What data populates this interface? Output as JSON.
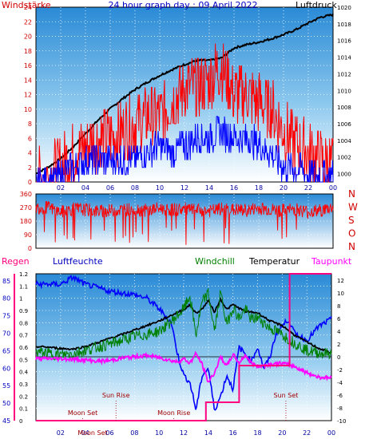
{
  "chart_data": [
    {
      "type": "line",
      "title": "24 hour graph day : 09 April 2022",
      "left_axis_label": "Windstärke",
      "right_axis_label": "Luftdruck",
      "x_ticks": [
        "02",
        "04",
        "06",
        "08",
        "10",
        "12",
        "14",
        "16",
        "18",
        "20",
        "22",
        "00"
      ],
      "left_ticks": [
        "0",
        "2",
        "4",
        "6",
        "8",
        "10",
        "12",
        "14",
        "16",
        "18",
        "20",
        "22",
        "24"
      ],
      "right_ticks": [
        "1000",
        "1002",
        "1004",
        "1006",
        "1008",
        "1010",
        "1012",
        "1014",
        "1016",
        "1018",
        "1020"
      ],
      "ylim_left": [
        0,
        24
      ],
      "ylim_right": [
        999,
        1020
      ],
      "series": [
        {
          "key": "pressure",
          "color": "#000000",
          "x": [
            0,
            1,
            2,
            3,
            4,
            5,
            6,
            7,
            8,
            9,
            10,
            11,
            12,
            13,
            14,
            15,
            16,
            17,
            18,
            19,
            20,
            21,
            22,
            23,
            24
          ],
          "values": [
            1000.0,
            1000.8,
            1001.8,
            1003.2,
            1004.8,
            1006.4,
            1007.8,
            1009.0,
            1010.1,
            1011.0,
            1011.8,
            1012.5,
            1013.1,
            1013.6,
            1013.6,
            1013.9,
            1015.1,
            1015.5,
            1015.8,
            1016.2,
            1016.7,
            1017.3,
            1018.1,
            1018.8,
            1019.1
          ]
        },
        {
          "key": "wind_gust",
          "color": "#ff0000",
          "x": [
            0,
            1,
            2,
            3,
            4,
            5,
            6,
            7,
            8,
            9,
            10,
            11,
            12,
            13,
            14,
            15,
            16,
            17,
            18,
            19,
            20,
            21,
            22,
            23,
            24
          ],
          "values": [
            0,
            1,
            2,
            4,
            5,
            6,
            6,
            7,
            8,
            9,
            9,
            11,
            13,
            13,
            14,
            16,
            12,
            12,
            11,
            10,
            7,
            5,
            4,
            3,
            2
          ]
        },
        {
          "key": "wind_avg",
          "color": "#0000ff",
          "x": [
            0,
            1,
            2,
            3,
            4,
            5,
            6,
            7,
            8,
            9,
            10,
            11,
            12,
            13,
            14,
            15,
            16,
            17,
            18,
            19,
            20,
            21,
            22,
            23,
            24
          ],
          "values": [
            0,
            0,
            1,
            2,
            3,
            3,
            3,
            3,
            3,
            4,
            5,
            4,
            5,
            6,
            6,
            7,
            6,
            6,
            5,
            4,
            2,
            2,
            1,
            1,
            1
          ]
        }
      ]
    },
    {
      "type": "line",
      "right_labels": [
        "N",
        "W",
        "S",
        "O",
        "N"
      ],
      "left_ticks": [
        "0",
        "90",
        "180",
        "270",
        "360"
      ],
      "ylim": [
        0,
        360
      ],
      "series": [
        {
          "key": "wind_direction",
          "color": "#ff0000",
          "x": [
            0,
            1,
            2,
            3,
            4,
            5,
            6,
            7,
            8,
            9,
            10,
            11,
            12,
            13,
            14,
            15,
            16,
            17,
            18,
            19,
            20,
            21,
            22,
            23,
            24
          ],
          "values": [
            270,
            270,
            240,
            260,
            255,
            245,
            250,
            255,
            260,
            250,
            265,
            255,
            260,
            250,
            245,
            260,
            255,
            250,
            265,
            255,
            250,
            260,
            240,
            250,
            270
          ]
        }
      ]
    },
    {
      "type": "line",
      "legend": [
        "Regen",
        "Luftfeuchte",
        "Windchill",
        "Temperatur",
        "Taupunkt"
      ],
      "x_ticks": [
        "02",
        "04",
        "06",
        "08",
        "10",
        "12",
        "14",
        "16",
        "18",
        "20",
        "22",
        "00"
      ],
      "rain_ticks": [
        "0",
        "0.1",
        "0.2",
        "0.3",
        "0.4",
        "0.5",
        "0.6",
        "0.7",
        "0.8",
        "0.9",
        "1",
        "1.1",
        "1.2"
      ],
      "humidity_ticks": [
        "45",
        "50",
        "55",
        "60",
        "65",
        "70",
        "75",
        "80",
        "85"
      ],
      "temp_ticks": [
        "-10",
        "-8",
        "-6",
        "-4",
        "-2",
        "0",
        "2",
        "4",
        "6",
        "8",
        "10",
        "12"
      ],
      "ylim_temp": [
        -10,
        13
      ],
      "ylim_humidity": [
        45,
        87
      ],
      "annotations": [
        "Moon Set",
        "Sun Rise",
        "Moon Rise",
        "Sun Set",
        "Moon Set"
      ],
      "series": [
        {
          "key": "humidity",
          "color": "#0000ff",
          "x": [
            0,
            2,
            3,
            4,
            5,
            6,
            8,
            9,
            10,
            11,
            11.5,
            12,
            12.5,
            13,
            13.5,
            14,
            14.5,
            15,
            15.5,
            16,
            16.5,
            17,
            17.5,
            18,
            18.5,
            19,
            19.5,
            20,
            20.5,
            21,
            22,
            23,
            24
          ],
          "values": [
            84,
            84,
            86,
            84,
            83,
            82,
            81,
            80,
            77,
            73,
            64,
            58,
            56,
            48,
            58,
            60,
            48,
            52,
            58,
            54,
            66,
            64,
            62,
            66,
            60,
            63,
            70,
            72,
            74,
            70,
            68,
            72,
            74
          ]
        },
        {
          "key": "temperature",
          "color": "#000000",
          "x": [
            0,
            1,
            2,
            3,
            4,
            5,
            6,
            7,
            8,
            9,
            10,
            11,
            12,
            12.5,
            13,
            13.5,
            14,
            14.5,
            15,
            15.5,
            16,
            16.5,
            17,
            18,
            19,
            20,
            21,
            22,
            23,
            24
          ],
          "values": [
            1.6,
            1.5,
            1.3,
            1.2,
            1.6,
            2.2,
            2.9,
            3.5,
            4.2,
            4.9,
            5.6,
            6.5,
            7.4,
            8.1,
            6.8,
            7.5,
            8.8,
            7.0,
            9.0,
            7.4,
            8.2,
            7.6,
            7.1,
            6.9,
            5.6,
            4.9,
            3.4,
            2.3,
            1.3,
            0.6
          ]
        },
        {
          "key": "windchill",
          "color": "#008000",
          "x": [
            0,
            1,
            2,
            3,
            4,
            5,
            6,
            7,
            8,
            9,
            10,
            11,
            12,
            12.5,
            13,
            13.5,
            14,
            14.5,
            15,
            15.5,
            16,
            16.5,
            17,
            17.5,
            18,
            19,
            20,
            21,
            22,
            23,
            24
          ],
          "values": [
            0.8,
            0.5,
            0.3,
            0.5,
            1.0,
            1.5,
            2.0,
            2.6,
            3.2,
            3.5,
            4.0,
            5.5,
            7.5,
            9.5,
            3.5,
            8.5,
            10.0,
            4.0,
            10.0,
            5.0,
            7.8,
            6.0,
            7.5,
            5.8,
            6.2,
            4.5,
            3.5,
            2.2,
            1.0,
            0.6,
            0.5
          ]
        },
        {
          "key": "dewpoint",
          "color": "#ff00ff",
          "x": [
            0,
            2,
            3,
            4,
            5,
            6,
            7,
            8,
            9,
            10,
            11,
            11.5,
            12,
            12.5,
            13,
            13.5,
            14,
            14.5,
            15,
            15.5,
            16,
            16.5,
            17,
            17.5,
            18,
            19,
            20,
            21,
            22,
            23,
            24
          ],
          "values": [
            -0.3,
            -0.3,
            -0.4,
            -0.5,
            -0.7,
            -0.6,
            -0.2,
            0.0,
            0.2,
            -0.1,
            -0.6,
            -0.8,
            -0.3,
            -1.0,
            0.5,
            -1.2,
            -4.0,
            -2.5,
            0.0,
            -1.5,
            0.4,
            -1.0,
            0.3,
            -1.0,
            -1.5,
            -1.2,
            -1.0,
            -1.5,
            -2.5,
            -3.2,
            -3.3
          ]
        },
        {
          "key": "rain",
          "color": "#ff0080",
          "x": [
            0,
            13.8,
            13.8,
            16.5,
            16.5,
            17.6,
            17.6,
            20.6,
            20.6,
            24
          ],
          "values": [
            0,
            0,
            0.15,
            0.15,
            0.45,
            0.45,
            0.45,
            0.45,
            1.2,
            1.2
          ]
        }
      ]
    }
  ]
}
